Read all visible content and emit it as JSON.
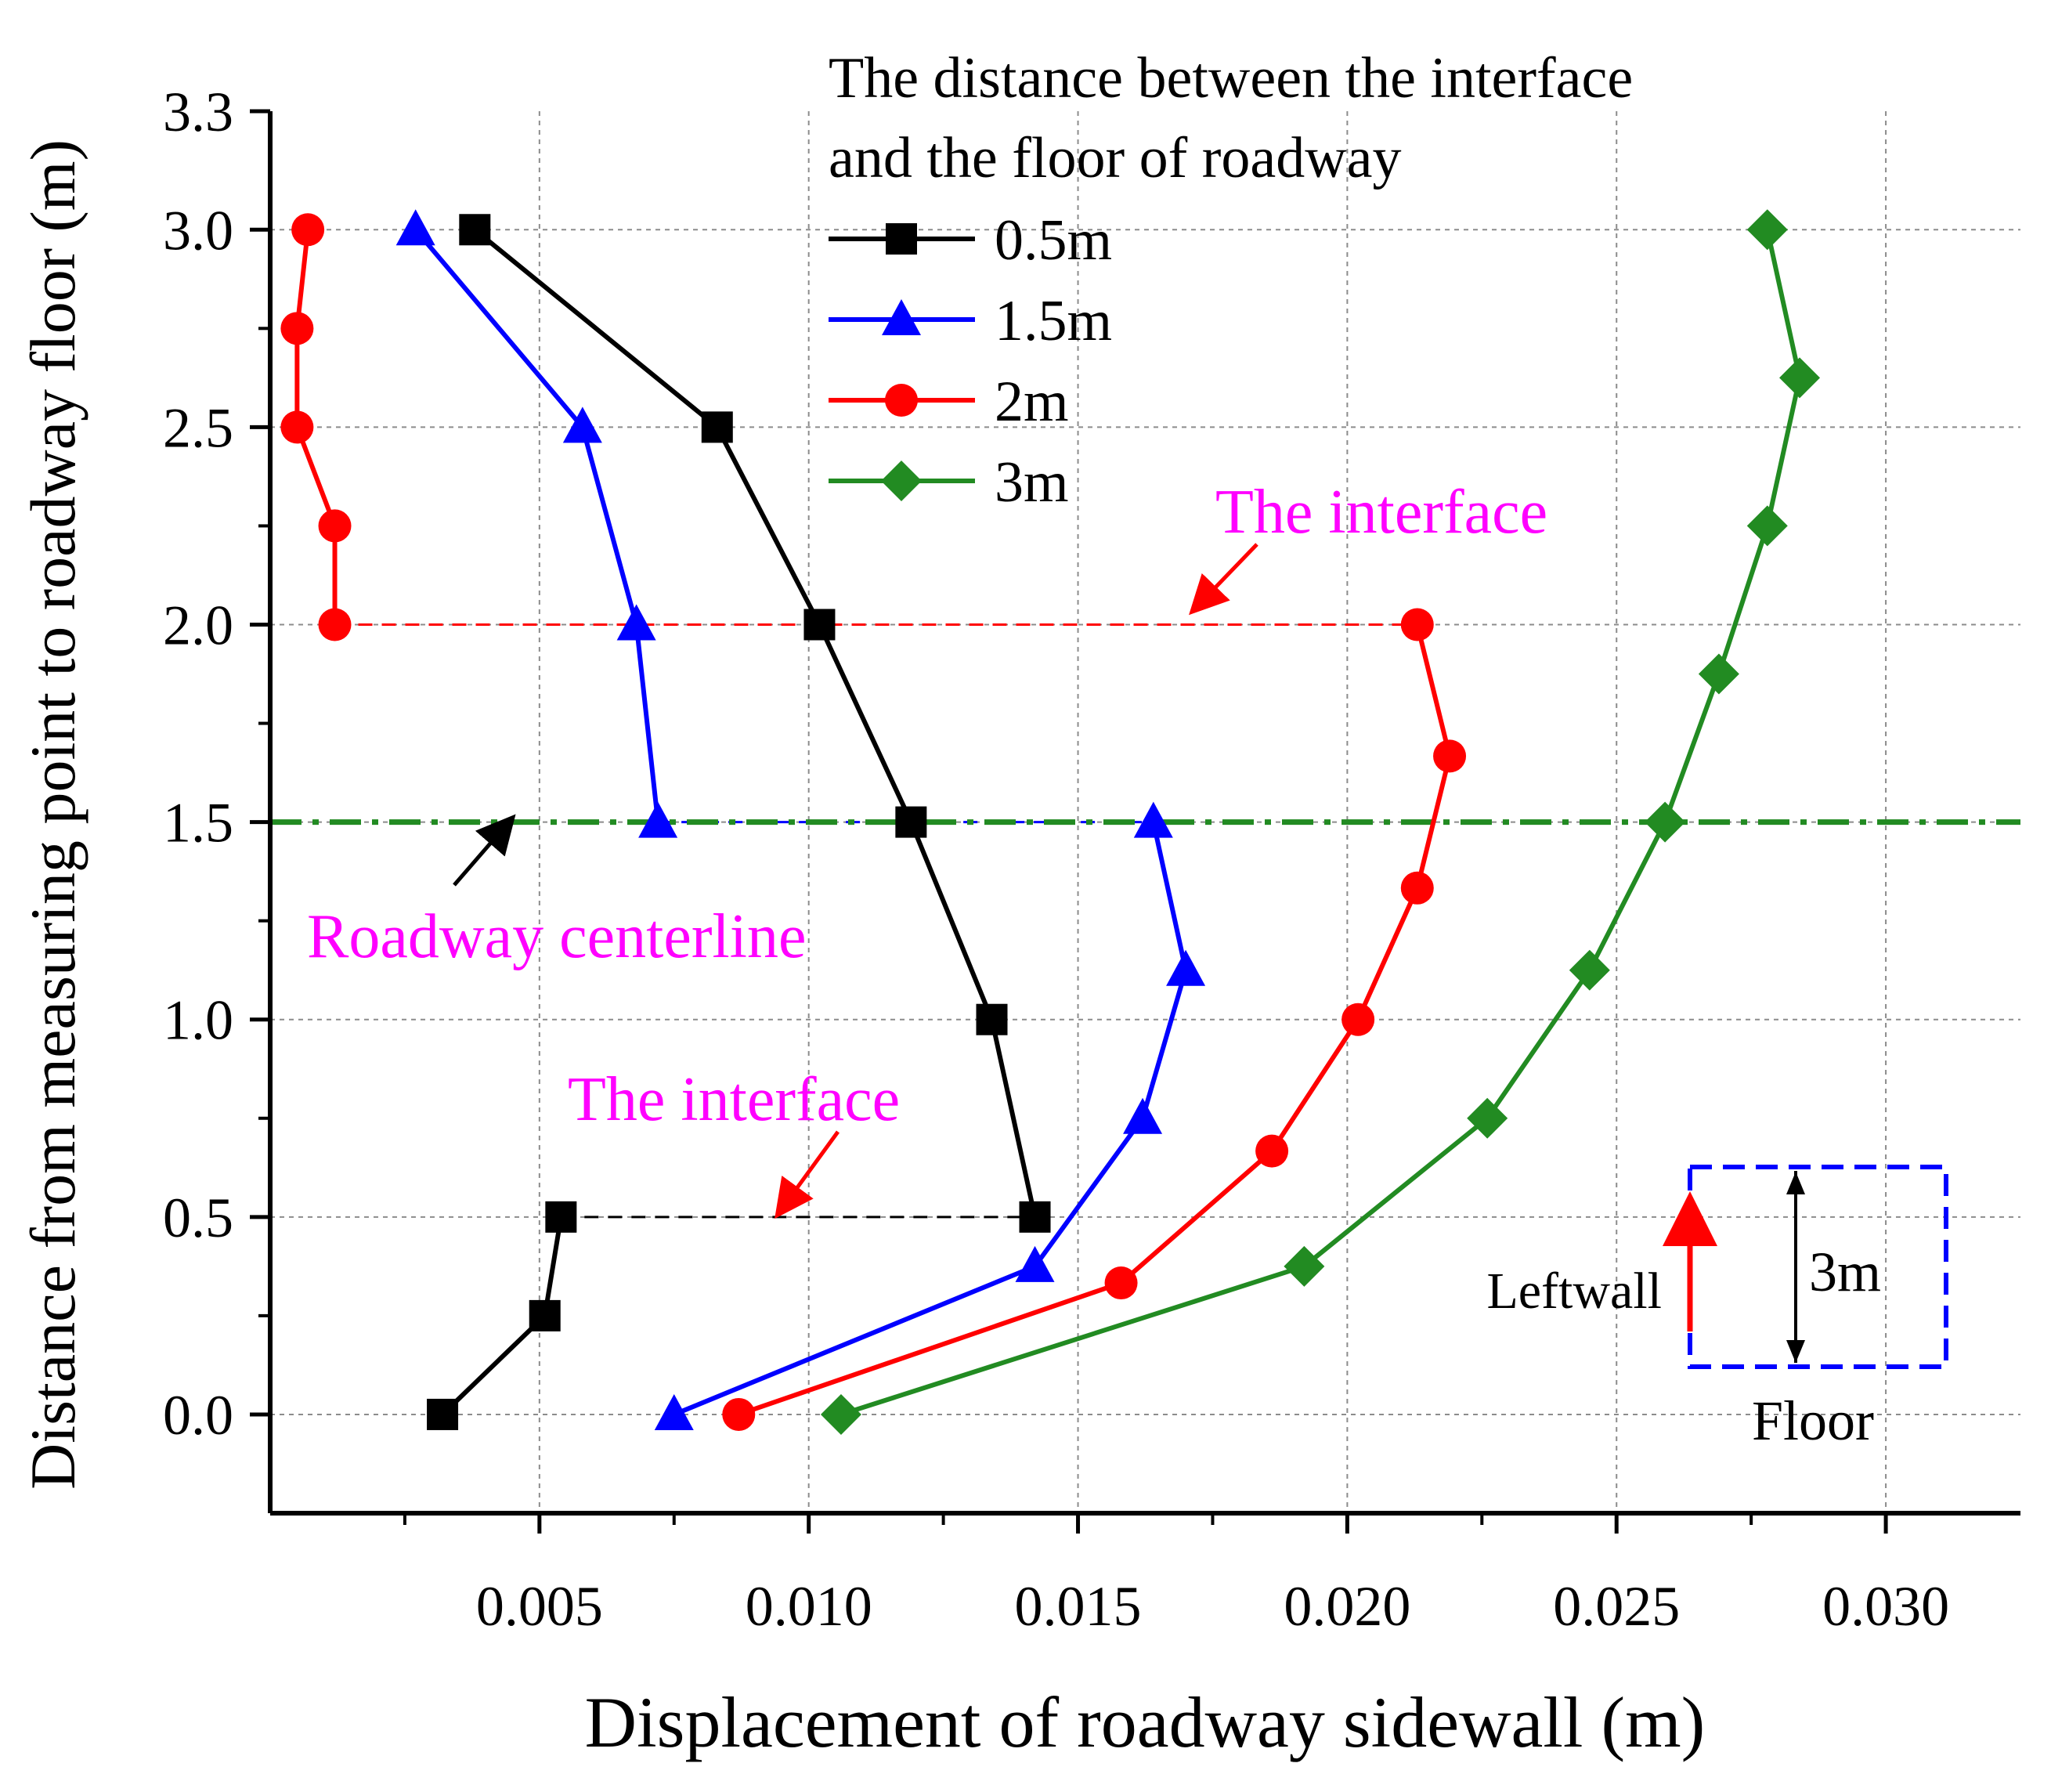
{
  "chart_data": {
    "type": "line",
    "title": "",
    "xlabel": "Displacement of roadway sidewall (m)",
    "ylabel": "Distance from measuring point to roadway floor (m)",
    "xlim": [
      0.0,
      0.0325
    ],
    "ylim": [
      -0.25,
      3.3
    ],
    "x_ticks": [
      "0.005",
      "0.010",
      "0.015",
      "0.020",
      "0.025",
      "0.030"
    ],
    "x_tick_values": [
      0.005,
      0.01,
      0.015,
      0.02,
      0.025,
      0.03
    ],
    "y_ticks": [
      "0.0",
      "0.5",
      "1.0",
      "1.5",
      "2.0",
      "2.5",
      "3.0",
      "3.3"
    ],
    "y_tick_values": [
      0.0,
      0.5,
      1.0,
      1.5,
      2.0,
      2.5,
      3.0,
      3.3
    ],
    "grid": true,
    "legend": {
      "title_line1": "The distance between the interface",
      "title_line2": "and the floor of roadway",
      "placement": "top-center"
    },
    "series": [
      {
        "name": "0.5m",
        "color": "#000000",
        "marker": "square",
        "segments": [
          [
            [
              0.0032,
              0.0
            ],
            [
              0.0051,
              0.25
            ],
            [
              0.0054,
              0.5
            ]
          ],
          [
            [
              0.0142,
              0.5
            ],
            [
              0.0134,
              1.0
            ],
            [
              0.0119,
              1.5
            ],
            [
              0.0102,
              2.0
            ],
            [
              0.0083,
              2.5
            ],
            [
              0.0038,
              3.0
            ]
          ]
        ]
      },
      {
        "name": "1.5m",
        "color": "#0000ff",
        "marker": "triangle",
        "segments": [
          [
            [
              0.0075,
              0.0
            ],
            [
              0.0142,
              0.375
            ],
            [
              0.0162,
              0.75
            ],
            [
              0.017,
              1.125
            ],
            [
              0.0164,
              1.5
            ]
          ],
          [
            [
              0.0072,
              1.5
            ],
            [
              0.0068,
              2.0
            ],
            [
              0.0058,
              2.5
            ],
            [
              0.0027,
              3.0
            ]
          ]
        ]
      },
      {
        "name": "2m",
        "color": "#ff0000",
        "marker": "circle",
        "segments": [
          [
            [
              0.0087,
              0.0
            ],
            [
              0.0158,
              0.333
            ],
            [
              0.0186,
              0.667
            ],
            [
              0.0202,
              1.0
            ],
            [
              0.0213,
              1.333
            ],
            [
              0.0219,
              1.667
            ],
            [
              0.0213,
              2.0
            ]
          ],
          [
            [
              0.0012,
              2.0
            ],
            [
              0.0012,
              2.25
            ],
            [
              0.0005,
              2.5
            ],
            [
              0.0005,
              2.75
            ],
            [
              0.0007,
              3.0
            ]
          ]
        ]
      },
      {
        "name": "3m",
        "color": "#228b22",
        "marker": "diamond",
        "segments": [
          [
            [
              0.0106,
              0.0
            ],
            [
              0.0192,
              0.375
            ],
            [
              0.0226,
              0.75
            ],
            [
              0.0245,
              1.125
            ],
            [
              0.0259,
              1.5
            ],
            [
              0.0269,
              1.875
            ],
            [
              0.0278,
              2.25
            ],
            [
              0.0284,
              2.625
            ],
            [
              0.0278,
              3.0
            ]
          ]
        ]
      }
    ],
    "reference_lines": [
      {
        "name": "interface-2m",
        "y": 2.0,
        "x_from": 0.0012,
        "x_to": 0.0213,
        "color": "#ff0000",
        "style": "dashed"
      },
      {
        "name": "interface-0.5m",
        "y": 0.5,
        "x_from": 0.0054,
        "x_to": 0.0142,
        "color": "#000000",
        "style": "dashed"
      },
      {
        "name": "interface-1.5m",
        "y": 1.5,
        "x_from": 0.0072,
        "x_to": 0.0164,
        "color": "#0000ff",
        "style": "dashed"
      },
      {
        "name": "centerline",
        "y": 1.5,
        "x_from": 0.0,
        "x_to": 0.0325,
        "color": "#228b22",
        "style": "dashdot"
      }
    ],
    "annotations": {
      "interface_upper": "The interface",
      "interface_lower": "The interface",
      "centerline": "Roadway centerline",
      "inset_height": "3m",
      "inset_wall": "Leftwall",
      "inset_floor": "Floor"
    },
    "colors": {
      "annotation": "#ff00ff",
      "arrow": "#ff0000",
      "inset_box": "#0000ff"
    }
  }
}
